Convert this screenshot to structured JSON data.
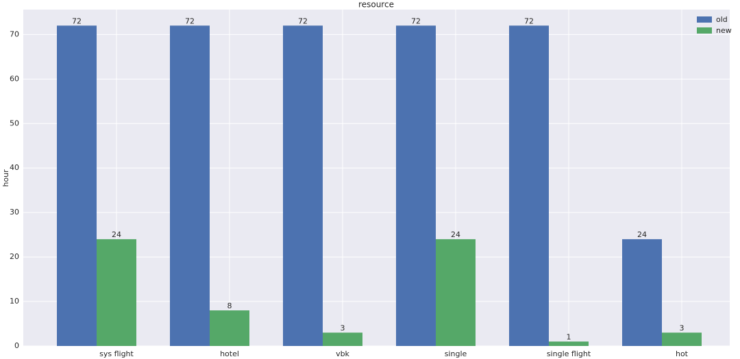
{
  "chart_data": {
    "type": "bar",
    "title": "resource",
    "y_label": "hour",
    "categories": [
      "sys flight",
      "hotel",
      "vbk",
      "single",
      "single flight",
      "hot"
    ],
    "series": [
      {
        "name": "old",
        "color": "#4c72b0",
        "values": [
          72,
          72,
          72,
          72,
          72,
          24
        ]
      },
      {
        "name": "new",
        "color": "#55a868",
        "values": [
          24,
          8,
          3,
          24,
          1,
          3
        ]
      }
    ],
    "ylim": [
      0,
      75.6
    ],
    "yticks": [
      0,
      10,
      20,
      30,
      40,
      50,
      60,
      70
    ],
    "grid": true,
    "legend": "upper right"
  }
}
